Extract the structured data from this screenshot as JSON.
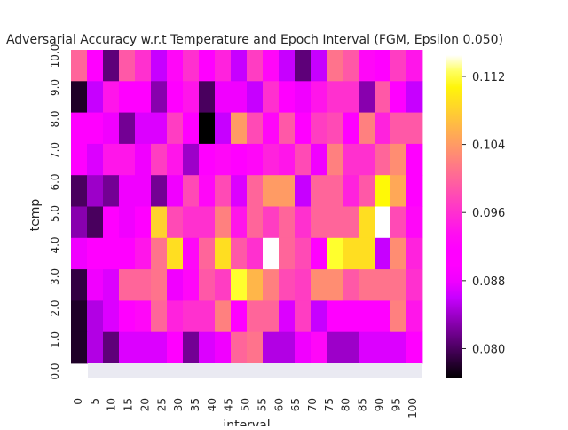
{
  "chart_data": {
    "type": "heatmap",
    "title": "Adversarial Accuracy w.r.t Temperature and Epoch Interval (FGM, Epsilon 0.050)",
    "xlabel": "interval",
    "ylabel": "temp",
    "x_ticks": [
      "0",
      "5",
      "10",
      "15",
      "20",
      "25",
      "30",
      "35",
      "40",
      "45",
      "50",
      "55",
      "60",
      "65",
      "70",
      "75",
      "80",
      "85",
      "90",
      "95",
      "100"
    ],
    "y_ticks": [
      "0.0",
      "1.0",
      "2.0",
      "3.0",
      "4.0",
      "5.0",
      "6.0",
      "7.0",
      "8.0",
      "9.0",
      "10.0"
    ],
    "colormap": "gnuplot2",
    "vmin": 0.0765,
    "vmax": 0.1145,
    "colorbar_ticks": [
      "0.080",
      "0.088",
      "0.096",
      "0.104",
      "0.112"
    ],
    "colorbar_tick_values": [
      0.08,
      0.088,
      0.096,
      0.104,
      0.112
    ],
    "rows_top_to_bottom": [
      [
        0.1,
        0.09,
        0.081,
        0.099,
        0.096,
        0.086,
        0.093,
        0.096,
        0.09,
        0.095,
        0.086,
        0.097,
        0.093,
        0.086,
        0.081,
        0.086,
        0.101,
        0.099,
        0.093,
        0.09,
        0.097,
        0.094
      ],
      [
        0.078,
        0.086,
        0.094,
        0.092,
        0.092,
        0.083,
        0.092,
        0.094,
        0.08,
        0.088,
        0.088,
        0.086,
        0.096,
        0.089,
        0.088,
        0.094,
        0.096,
        0.096,
        0.083,
        0.099,
        0.089,
        0.086
      ],
      [
        0.092,
        0.09,
        0.088,
        0.082,
        0.087,
        0.087,
        0.097,
        0.092,
        0.076,
        0.086,
        0.104,
        0.098,
        0.093,
        0.099,
        0.091,
        0.097,
        0.098,
        0.091,
        0.102,
        0.095,
        0.099,
        0.099
      ],
      [
        0.089,
        0.087,
        0.094,
        0.094,
        0.088,
        0.097,
        0.094,
        0.084,
        0.089,
        0.093,
        0.091,
        0.093,
        0.095,
        0.094,
        0.098,
        0.088,
        0.102,
        0.096,
        0.096,
        0.1,
        0.103,
        0.091
      ],
      [
        0.08,
        0.084,
        0.082,
        0.088,
        0.088,
        0.082,
        0.088,
        0.098,
        0.093,
        0.098,
        0.087,
        0.1,
        0.104,
        0.104,
        0.086,
        0.1,
        0.1,
        0.095,
        0.099,
        0.111,
        0.105,
        0.092
      ],
      [
        0.083,
        0.08,
        0.09,
        0.088,
        0.09,
        0.108,
        0.098,
        0.096,
        0.096,
        0.102,
        0.094,
        0.1,
        0.097,
        0.1,
        0.096,
        0.1,
        0.1,
        0.1,
        0.109,
        0.115,
        0.098,
        0.093
      ],
      [
        0.088,
        0.089,
        0.09,
        0.089,
        0.094,
        0.101,
        0.109,
        0.093,
        0.1,
        0.109,
        0.099,
        0.096,
        0.115,
        0.1,
        0.098,
        0.091,
        0.112,
        0.109,
        0.109,
        0.086,
        0.103,
        0.095
      ],
      [
        0.079,
        0.088,
        0.087,
        0.1,
        0.1,
        0.101,
        0.088,
        0.093,
        0.099,
        0.097,
        0.112,
        0.106,
        0.102,
        0.098,
        0.097,
        0.103,
        0.103,
        0.099,
        0.101,
        0.101,
        0.101,
        0.096
      ],
      [
        0.078,
        0.085,
        0.087,
        0.092,
        0.093,
        0.1,
        0.095,
        0.096,
        0.096,
        0.102,
        0.091,
        0.1,
        0.1,
        0.087,
        0.097,
        0.086,
        0.09,
        0.092,
        0.09,
        0.092,
        0.102,
        0.094
      ],
      [
        0.078,
        0.085,
        0.081,
        0.087,
        0.087,
        0.087,
        0.089,
        0.082,
        0.087,
        0.088,
        0.1,
        0.101,
        0.085,
        0.085,
        0.088,
        0.093,
        0.084,
        0.084,
        0.087,
        0.087,
        0.087,
        0.09
      ]
    ]
  }
}
